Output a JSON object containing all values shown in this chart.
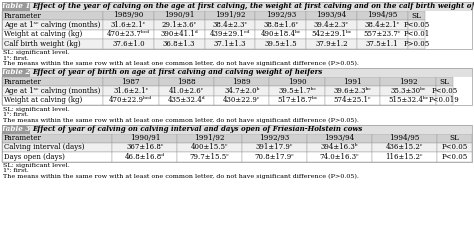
{
  "table1_title": "Effect of the year of calving on the age at first calving, the weight at first calving and on the calf birth weight of calves",
  "table1_header": [
    "Parameter",
    "1989/90",
    "1990/91",
    "1991/92",
    "1992/93",
    "1993/94",
    "1994/95",
    "SL"
  ],
  "table1_rows": [
    [
      "Age at 1ˢᶜ calving (months)",
      "31.6±2.1ᶜ",
      "29.1±3.6ᶜ",
      "38.4±2.3ᶜ",
      "38.8±1.6ᶜ",
      "39.4±2.3ᶜ",
      "38.4±2.1ᶜ",
      "P<0.05"
    ],
    [
      "Weight at calving (kg)",
      "470±23.7ᵇᶜᵈ",
      "390±41.1ᵈ",
      "439±29.1ᶜᵈ",
      "490±18.4ᵇᶜ",
      "542±29.1ᵇᶜ",
      "557±23.7ᶜ",
      "P<0.01"
    ],
    [
      "Calf birth weight (kg)",
      "37.6±1.0",
      "36.8±1.3",
      "37.1±1.3",
      "39.5±1.5",
      "37.9±1.2",
      "37.5±1.1",
      "P>0.05"
    ]
  ],
  "table1_footnotes": [
    "SL: significant level.",
    "1ˢ: first.",
    "The means within the same row with at least one common letter, do not have significant difference (P>0.05)."
  ],
  "table2_title": "Effect of year of birth on age at first calving and calving weight of heifers",
  "table2_header": [
    "Parameter",
    "1987",
    "1988",
    "1989",
    "1990",
    "1991",
    "1992",
    "SL"
  ],
  "table2_rows": [
    [
      "Age at 1ˢᶜ calving (months)",
      "31.6±2.1ᶜ",
      "41.0±2.6ᶜ",
      "34.7±2.0ᵇ",
      "39.5±1.7ᵇᶜ",
      "39.6±2.3ᵇᶜ",
      "35.3±30ᵇᶜ",
      "P<0.05"
    ],
    [
      "Weight at calving (kg)",
      "470±22.9ᵇᶜᵈ",
      "435±32.4ᵈ",
      "430±22.9ᶜ",
      "517±18.7ᵇᶜ",
      "574±25.1ᶜ",
      "515±32.4ᵇᶜ",
      "P<0.019"
    ]
  ],
  "table2_footnotes": [
    "SL: significant level.",
    "1ˢ: first.",
    "The means within the same row with at least one common letter, do not have significant difference (P>0.05)."
  ],
  "table3_title": "Effect of year of calving on calving interval and days open of Friesian-Holstein cows",
  "table3_header": [
    "Parameter",
    "1990/91",
    "1991/92",
    "1992/93",
    "1993/94",
    "1994/95",
    "SL"
  ],
  "table3_rows": [
    [
      "Calving interval (days)",
      "367±16.8ᶜ",
      "400±15.5ᶜ",
      "391±17.9ᶜ",
      "394±16.3ᵇ",
      "436±15.2ᶜ",
      "P<0.05"
    ],
    [
      "Days open (days)",
      "46.8±16.8ᵈ",
      "79.7±15.5ᶜ",
      "70.8±17.9ᶜ",
      "74.0±16.3ᶜ",
      "116±15.2ᶜ",
      "P<0.05"
    ]
  ],
  "table3_footnotes": [
    "SL: significant level.",
    "1ˢ: first.",
    "The means within the same row with at least one common letter, do not have significant difference (P>0.05)."
  ],
  "label_bg": "#999999",
  "title_bg": "#e0e0e0",
  "header_bg": "#d0d0d0",
  "row_bg_alt": "#f0f0f0",
  "row_bg_white": "#ffffff",
  "border_color": "#999999",
  "text_color": "#000000",
  "title_fontsize": 5.0,
  "header_fontsize": 5.2,
  "data_fontsize": 5.0,
  "footnote_fontsize": 4.6,
  "label_fontsize": 5.2
}
